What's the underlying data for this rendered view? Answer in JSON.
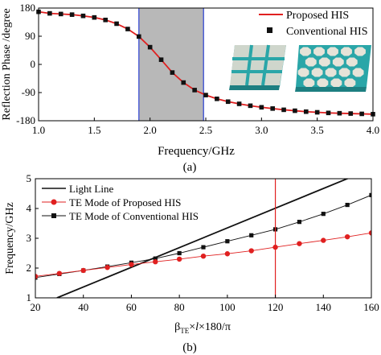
{
  "figure": {
    "label_a": "(a)",
    "label_b": "(b)"
  },
  "colors": {
    "red": "#e02020",
    "black": "#111111",
    "band": "#b8b8b8",
    "band_edge": "#2a3fd0",
    "hex_fill": "#e6e3d8",
    "teal": "#2aa6a8"
  },
  "insets": [
    {
      "name": "square-patch-array-icon",
      "description_icon": "square-patch-array-icon"
    },
    {
      "name": "hexagonal-patch-array-icon",
      "description_icon": "hexagonal-patch-array-icon"
    }
  ],
  "chart_data": [
    {
      "type": "line",
      "xlabel": "Frequency/GHz",
      "ylabel": "Reflection Phase /degree",
      "xlim": [
        1.0,
        4.0
      ],
      "ylim": [
        -180,
        180
      ],
      "xticks": [
        "1.0",
        "1.5",
        "2.0",
        "2.5",
        "3.0",
        "3.5",
        "4.0"
      ],
      "yticks": [
        "180",
        "90",
        "0",
        "-90",
        "-180"
      ],
      "shaded_band": [
        1.9,
        2.48
      ],
      "legend": [
        "Proposed HIS",
        "Conventional HIS"
      ],
      "legend_position": "top-right",
      "series": [
        {
          "name": "Proposed HIS",
          "style": "line",
          "x": [
            1.0,
            1.1,
            1.2,
            1.3,
            1.4,
            1.5,
            1.6,
            1.7,
            1.8,
            1.9,
            2.0,
            2.1,
            2.2,
            2.3,
            2.4,
            2.5,
            2.6,
            2.7,
            2.8,
            2.9,
            3.0,
            3.1,
            3.2,
            3.3,
            3.4,
            3.5,
            3.6,
            3.7,
            3.8,
            3.9,
            4.0
          ],
          "y": [
            168,
            163,
            161,
            159,
            155,
            150,
            142,
            130,
            113,
            89,
            55,
            15,
            -26,
            -58,
            -82,
            -98,
            -110,
            -119,
            -126,
            -132,
            -137,
            -141,
            -145,
            -148,
            -151,
            -153,
            -155,
            -156,
            -157,
            -158,
            -159
          ]
        },
        {
          "name": "Conventional HIS",
          "style": "markers",
          "x": [
            1.0,
            1.1,
            1.2,
            1.3,
            1.4,
            1.5,
            1.6,
            1.7,
            1.8,
            1.9,
            2.0,
            2.1,
            2.2,
            2.3,
            2.4,
            2.5,
            2.6,
            2.7,
            2.8,
            2.9,
            3.0,
            3.1,
            3.2,
            3.3,
            3.4,
            3.5,
            3.6,
            3.7,
            3.8,
            3.9,
            4.0
          ],
          "y": [
            168,
            163,
            161,
            159,
            155,
            150,
            142,
            130,
            113,
            89,
            55,
            15,
            -26,
            -58,
            -82,
            -98,
            -110,
            -119,
            -126,
            -132,
            -137,
            -141,
            -145,
            -148,
            -151,
            -153,
            -155,
            -156,
            -157,
            -158,
            -159
          ]
        }
      ]
    },
    {
      "type": "line",
      "xlabel": "β_TE×l×180/π",
      "ylabel": "Frequency/GHz",
      "xlim": [
        20,
        160
      ],
      "ylim": [
        1,
        5
      ],
      "xticks": [
        "20",
        "40",
        "60",
        "80",
        "100",
        "120",
        "140",
        "160"
      ],
      "yticks": [
        "1",
        "2",
        "3",
        "4",
        "5"
      ],
      "vline_x": 120,
      "legend": [
        "Light Line",
        "TE Mode of Proposed HIS",
        "TE Mode of Conventional HIS"
      ],
      "legend_position": "top-left",
      "series": [
        {
          "name": "Light Line",
          "style": "line",
          "x": [
            29,
            156
          ],
          "y": [
            1.0,
            5.2
          ]
        },
        {
          "name": "TE Mode of Proposed HIS",
          "style": "line-circles",
          "x": [
            20,
            30,
            40,
            50,
            60,
            70,
            80,
            90,
            100,
            110,
            120,
            130,
            140,
            150,
            160
          ],
          "y": [
            1.72,
            1.82,
            1.92,
            2.02,
            2.12,
            2.21,
            2.3,
            2.4,
            2.48,
            2.58,
            2.7,
            2.82,
            2.93,
            3.05,
            3.18
          ]
        },
        {
          "name": "TE Mode of Conventional HIS",
          "style": "line-squares",
          "x": [
            20,
            30,
            40,
            50,
            60,
            70,
            80,
            90,
            100,
            110,
            120,
            130,
            140,
            150,
            160
          ],
          "y": [
            1.68,
            1.8,
            1.92,
            2.05,
            2.18,
            2.32,
            2.5,
            2.7,
            2.9,
            3.1,
            3.3,
            3.55,
            3.82,
            4.12,
            4.45
          ]
        }
      ]
    }
  ]
}
